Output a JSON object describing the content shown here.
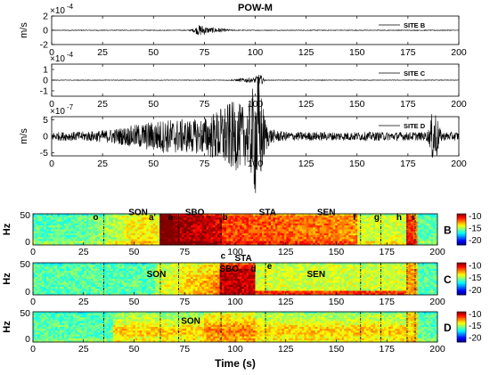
{
  "chart_data": [
    {
      "type": "line",
      "title": "POW-M",
      "ylabel": "m/s",
      "multiplier": "×10",
      "exponent": "-4",
      "xlim": [
        0,
        200
      ],
      "ylim": [
        -2,
        2
      ],
      "xticks": [
        "0",
        "25",
        "50",
        "75",
        "100",
        "125",
        "150",
        "175",
        "200"
      ],
      "yticks": [
        "2",
        "0",
        "-2"
      ],
      "ytick_values": [
        2,
        0,
        -2
      ],
      "legend": "SITE B",
      "legend_position": "top-right",
      "signal": {
        "bursts": [
          {
            "x": 73,
            "amp": 0.6,
            "width": 3
          },
          {
            "x": 80,
            "amp": 0.3,
            "width": 6
          }
        ],
        "noise": 0.04
      }
    },
    {
      "type": "line",
      "ylabel": "",
      "multiplier": "×10",
      "exponent": "-4",
      "xlim": [
        0,
        200
      ],
      "ylim": [
        -1.5,
        1.5
      ],
      "xticks": [
        "0",
        "25",
        "50",
        "75",
        "100",
        "125",
        "150",
        "175",
        "200"
      ],
      "yticks": [
        "1",
        "0",
        "-1"
      ],
      "ytick_values": [
        1,
        0,
        -1
      ],
      "legend": "SITE C",
      "legend_position": "top-right",
      "signal": {
        "bursts": [
          {
            "x": 96,
            "amp": 0.25,
            "width": 5
          },
          {
            "x": 102,
            "amp": 0.6,
            "width": 2
          }
        ],
        "noise": 0.03
      }
    },
    {
      "type": "line",
      "ylabel": "m/s",
      "multiplier": "×10",
      "exponent": "-7",
      "xlim": [
        0,
        200
      ],
      "ylim": [
        -6,
        6
      ],
      "xticks": [
        "0",
        "25",
        "50",
        "75",
        "100",
        "125",
        "150",
        "175",
        "200"
      ],
      "yticks": [
        "5",
        "0",
        "-5"
      ],
      "ytick_values": [
        5,
        0,
        -5
      ],
      "legend": "SITE D",
      "legend_position": "top-right",
      "signal": {
        "bursts": [
          {
            "x": 60,
            "amp": 1.2,
            "width": 25
          },
          {
            "x": 90,
            "amp": 2.5,
            "width": 12
          },
          {
            "x": 101,
            "amp": 4.5,
            "width": 3
          },
          {
            "x": 188,
            "amp": 2.5,
            "width": 2
          }
        ],
        "noise": 0.4
      }
    },
    {
      "type": "heatmap",
      "ylabel": "Hz",
      "ylim": [
        0,
        50
      ],
      "xlim": [
        0,
        200
      ],
      "yticks": [
        "50",
        "0"
      ],
      "ytick_values": [
        50,
        0
      ],
      "xticks": [
        "0",
        "25",
        "50",
        "75",
        "100",
        "125",
        "150",
        "175",
        "200"
      ],
      "site": "B",
      "colorbar": {
        "labels": [
          "-10",
          "-15",
          "-20"
        ],
        "values": [
          -10,
          -15,
          -20
        ],
        "range": [
          -22,
          -9
        ]
      },
      "markers": [
        35,
        63,
        72,
        93,
        162,
        172,
        185,
        189
      ],
      "labels": [
        {
          "text": "SON",
          "x": 52,
          "y": 48
        },
        {
          "text": "SBO",
          "x": 80,
          "y": 48
        },
        {
          "text": "STA",
          "x": 116,
          "y": 48
        },
        {
          "text": "SEN",
          "x": 145,
          "y": 48
        },
        {
          "text": "o",
          "x": 31,
          "y": 40
        },
        {
          "text": "a'",
          "x": 59,
          "y": 40
        },
        {
          "text": "a",
          "x": 68,
          "y": 40
        },
        {
          "text": "b",
          "x": 95,
          "y": 40
        },
        {
          "text": "f",
          "x": 159,
          "y": 40
        },
        {
          "text": "g",
          "x": 170,
          "y": 40
        },
        {
          "text": "h",
          "x": 181,
          "y": 40
        },
        {
          "text": "i",
          "x": 188,
          "y": 40
        }
      ]
    },
    {
      "type": "heatmap",
      "ylabel": "Hz",
      "ylim": [
        0,
        50
      ],
      "xlim": [
        0,
        200
      ],
      "yticks": [
        "50",
        "0"
      ],
      "ytick_values": [
        50,
        0
      ],
      "xticks": [
        "0",
        "25",
        "50",
        "75",
        "100",
        "125",
        "150",
        "175",
        "200"
      ],
      "site": "C",
      "colorbar": {
        "labels": [
          "-10",
          "-15",
          "-20"
        ],
        "values": [
          -10,
          -15,
          -20
        ],
        "range": [
          -22,
          -9
        ]
      },
      "markers": [
        35,
        63,
        72,
        93,
        115,
        162,
        172,
        185,
        189
      ],
      "labels": [
        {
          "text": "SON",
          "x": 61,
          "y": 28
        },
        {
          "text": "c",
          "x": 94,
          "y": 56
        },
        {
          "text": "STA",
          "x": 104,
          "y": 53
        },
        {
          "text": "SBO",
          "x": 97,
          "y": 36
        },
        {
          "text": "d",
          "x": 109,
          "y": 36
        },
        {
          "text": "e",
          "x": 117,
          "y": 40
        },
        {
          "text": "SEN",
          "x": 140,
          "y": 28
        }
      ]
    },
    {
      "type": "heatmap",
      "ylabel": "Hz",
      "xlabel": "Time (s)",
      "ylim": [
        0,
        50
      ],
      "xlim": [
        0,
        200
      ],
      "yticks": [
        "50",
        "0"
      ],
      "ytick_values": [
        50,
        0
      ],
      "xticks": [
        "0",
        "25",
        "50",
        "75",
        "100",
        "125",
        "150",
        "175",
        "200"
      ],
      "site": "D",
      "colorbar": {
        "labels": [
          "-10",
          "-15",
          "-20"
        ],
        "values": [
          -10,
          -15,
          -20
        ],
        "range": [
          -22,
          -9
        ]
      },
      "markers": [
        35,
        63,
        72,
        93,
        115,
        162,
        172,
        185,
        189
      ],
      "labels": [
        {
          "text": "SON",
          "x": 78,
          "y": 30
        }
      ]
    }
  ],
  "colors": {
    "trace": "#000000",
    "marker": "#111111",
    "frame": "#000000"
  }
}
